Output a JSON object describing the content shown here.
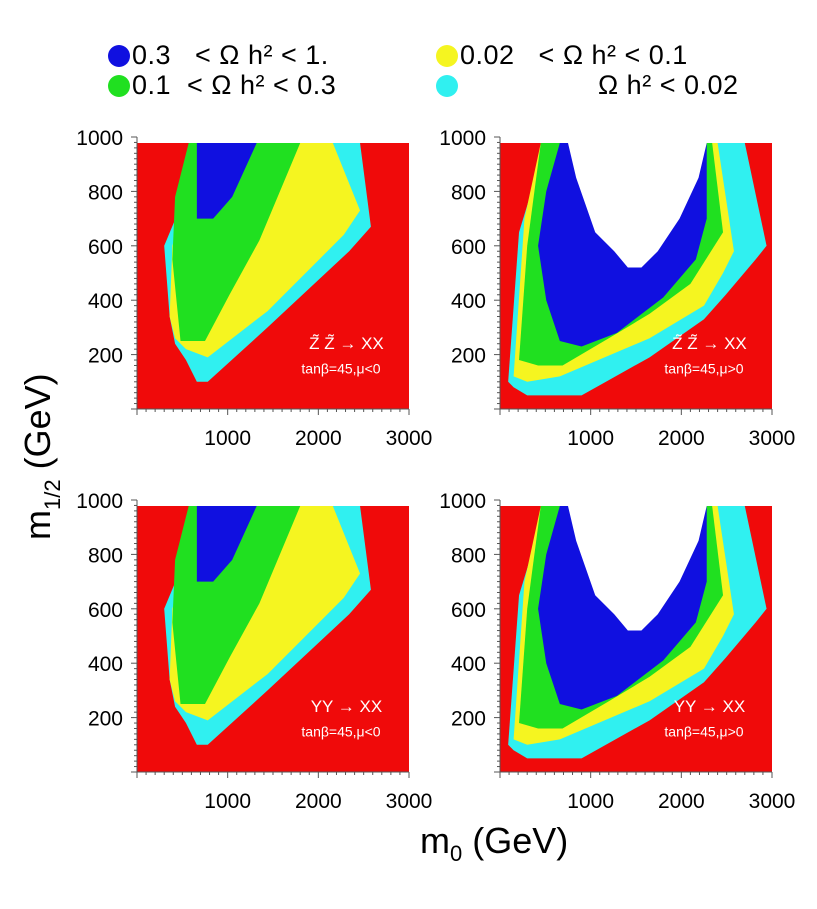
{
  "legend": [
    {
      "label": "0.3   < Ω h² < 1.",
      "color": "#1010e0"
    },
    {
      "label": "0.1  < Ω h² < 0.3",
      "color": "#20e020"
    },
    {
      "label": "0.02   < Ω h² < 0.1",
      "color": "#f5f520"
    },
    {
      "label": "Ω h² < 0.02",
      "color": "#30f0f0"
    }
  ],
  "axes": {
    "ylabel": "m",
    "ylabel_sub": "1/2",
    "ylabel_unit": " (GeV)",
    "xlabel": "m",
    "xlabel_sub": "0",
    "xlabel_unit": " (GeV)"
  },
  "colors": {
    "excluded": "#f00a0a",
    "allowed": "#ffffff",
    "blue": "#1010e0",
    "green": "#20e020",
    "yellow": "#f5f520",
    "cyan": "#30f0f0"
  },
  "chart_data": [
    {
      "type": "heatmap",
      "process": "Z̃ Z̃ → XX",
      "params": "tanβ=45,μ<0",
      "xlim": [
        0,
        3000
      ],
      "ylim": [
        0,
        1000
      ],
      "xticks": [
        1000,
        2000,
        3000
      ],
      "yticks": [
        200,
        400,
        600,
        800,
        1000
      ],
      "regions": [
        "excluded",
        "cyan",
        "yellow",
        "green",
        "blue"
      ]
    },
    {
      "type": "heatmap",
      "process": "Z̃ Z̃ → XX",
      "params": "tanβ=45,μ>0",
      "xlim": [
        0,
        3000
      ],
      "ylim": [
        0,
        1000
      ],
      "xticks": [
        1000,
        2000,
        3000
      ],
      "yticks": [
        200,
        400,
        600,
        800,
        1000
      ],
      "regions": [
        "excluded",
        "cyan",
        "yellow",
        "green",
        "blue",
        "allowed"
      ]
    },
    {
      "type": "heatmap",
      "process": "YY → XX",
      "params": "tanβ=45,μ<0",
      "xlim": [
        0,
        3000
      ],
      "ylim": [
        0,
        1000
      ],
      "xticks": [
        1000,
        2000,
        3000
      ],
      "yticks": [
        200,
        400,
        600,
        800,
        1000
      ],
      "regions": [
        "excluded",
        "cyan",
        "yellow",
        "green",
        "blue"
      ]
    },
    {
      "type": "heatmap",
      "process": "YY → XX",
      "params": "tanβ=45,μ>0",
      "xlim": [
        0,
        3000
      ],
      "ylim": [
        0,
        1000
      ],
      "xticks": [
        1000,
        2000,
        3000
      ],
      "yticks": [
        200,
        400,
        600,
        800,
        1000
      ],
      "regions": [
        "excluded",
        "cyan",
        "yellow",
        "green",
        "blue",
        "allowed"
      ]
    }
  ]
}
